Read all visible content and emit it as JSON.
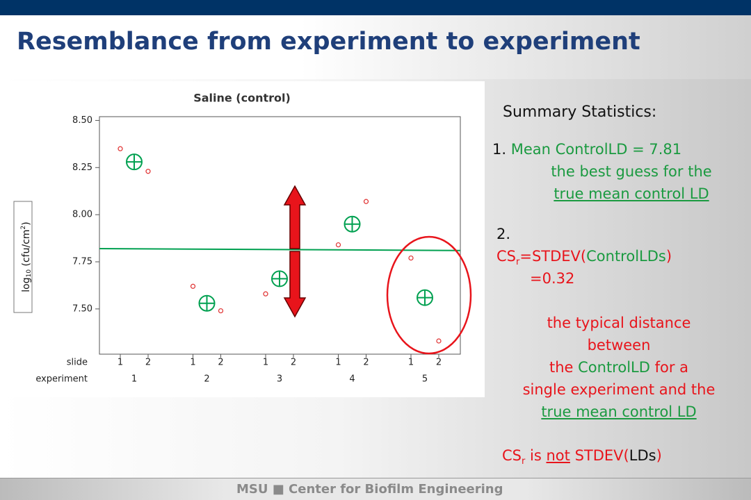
{
  "header": {
    "title": "Resemblance from experiment to experiment"
  },
  "chart_data": {
    "type": "scatter",
    "title": "Saline (control)",
    "ylabel": {
      "base": "log",
      "sub": "10",
      "mid": " (cfu/cm",
      "sup": "2",
      "end": ")"
    },
    "row_labels": [
      "slide",
      "experiment"
    ],
    "categories": [
      "1",
      "2",
      "1",
      "2",
      "1",
      "2",
      "1",
      "2",
      "1",
      "2"
    ],
    "experiments": [
      "1",
      "2",
      "3",
      "4",
      "5"
    ],
    "points": {
      "color": "#e03030",
      "values": [
        8.35,
        8.23,
        7.62,
        7.49,
        7.58,
        null,
        7.84,
        8.07,
        7.77,
        7.33
      ]
    },
    "means": {
      "color": "#00a050",
      "values": [
        8.28,
        7.53,
        7.66,
        7.95,
        7.56
      ]
    },
    "mean_line": {
      "color": "#00a050",
      "values": [
        7.82,
        7.81
      ]
    },
    "ylim": [
      7.26,
      8.52
    ],
    "yticks": [
      {
        "value": 7.5,
        "label": "7.50"
      },
      {
        "value": 7.75,
        "label": "7.75"
      },
      {
        "value": 8.0,
        "label": "8.00"
      },
      {
        "value": 8.25,
        "label": "8.25"
      },
      {
        "value": 8.5,
        "label": "8.50"
      }
    ]
  },
  "summary": {
    "heading": "Summary Statistics:",
    "item1": {
      "number": "1.",
      "line1": "Mean ControlLD = 7.81",
      "line2": "the best guess for the",
      "line3": "true mean control LD"
    },
    "item2": {
      "number": "2.",
      "cs": "CS",
      "sub": "r",
      "f1": "=STDEV(",
      "f2": "ControlLDs",
      "f3": ")",
      "value": "=0.32",
      "d1": "the typical distance",
      "d2": "between",
      "d3a": "the ",
      "d3b": "ControlLD",
      "d3c": " for a",
      "d4": "single experiment and the",
      "d5": "true mean control LD"
    },
    "note": {
      "cs": "CS",
      "sub": "r",
      "is": " is ",
      "not": "not",
      "f1": " STDEV(",
      "f2": "LDs",
      "f3": ")"
    }
  },
  "footer": {
    "text": "MSU ■ Center for Biofilm Engineering"
  }
}
